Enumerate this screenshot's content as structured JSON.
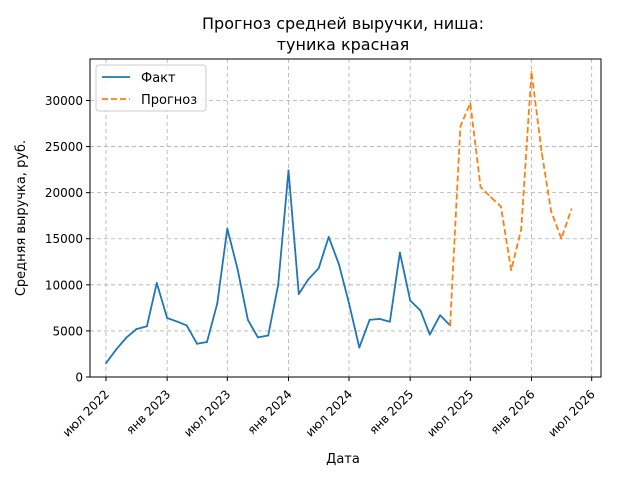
{
  "chart_data": {
    "type": "line",
    "title_lines": [
      "Прогноз средней выручки, ниша:",
      "туника красная"
    ],
    "xlabel": "Дата",
    "ylabel": "Средняя выручка, руб.",
    "grid": true,
    "legend_position": "top-left",
    "ylim": [
      0,
      34500
    ],
    "xlim": [
      "2022-05-14",
      "2026-07-29"
    ],
    "yticks": [
      0,
      5000,
      10000,
      15000,
      20000,
      25000,
      30000
    ],
    "xticks": [
      {
        "date": "2022-07-01",
        "label": "июл 2022"
      },
      {
        "date": "2023-01-01",
        "label": "янв 2023"
      },
      {
        "date": "2023-07-01",
        "label": "июл 2023"
      },
      {
        "date": "2024-01-01",
        "label": "янв 2024"
      },
      {
        "date": "2024-07-01",
        "label": "июл 2024"
      },
      {
        "date": "2025-01-01",
        "label": "янв 2025"
      },
      {
        "date": "2025-07-01",
        "label": "июл 2025"
      },
      {
        "date": "2026-01-01",
        "label": "янв 2026"
      },
      {
        "date": "2026-07-01",
        "label": "июл 2026"
      }
    ],
    "series": [
      {
        "name": "Факт",
        "color": "#1f77b4",
        "dash": "solid",
        "points": [
          {
            "x": "2022-07-01",
            "y": 1500
          },
          {
            "x": "2022-08-01",
            "y": 3000
          },
          {
            "x": "2022-09-01",
            "y": 4300
          },
          {
            "x": "2022-10-01",
            "y": 5200
          },
          {
            "x": "2022-11-01",
            "y": 5500
          },
          {
            "x": "2022-12-01",
            "y": 10200
          },
          {
            "x": "2023-01-01",
            "y": 6400
          },
          {
            "x": "2023-02-01",
            "y": 6000
          },
          {
            "x": "2023-03-01",
            "y": 5600
          },
          {
            "x": "2023-04-01",
            "y": 3600
          },
          {
            "x": "2023-05-01",
            "y": 3800
          },
          {
            "x": "2023-06-01",
            "y": 8000
          },
          {
            "x": "2023-07-01",
            "y": 16100
          },
          {
            "x": "2023-08-01",
            "y": 11700
          },
          {
            "x": "2023-09-01",
            "y": 6200
          },
          {
            "x": "2023-10-01",
            "y": 4300
          },
          {
            "x": "2023-11-01",
            "y": 4500
          },
          {
            "x": "2023-12-01",
            "y": 10000
          },
          {
            "x": "2024-01-01",
            "y": 22400
          },
          {
            "x": "2024-02-01",
            "y": 9000
          },
          {
            "x": "2024-03-01",
            "y": 10600
          },
          {
            "x": "2024-04-01",
            "y": 11800
          },
          {
            "x": "2024-05-01",
            "y": 15200
          },
          {
            "x": "2024-06-01",
            "y": 12200
          },
          {
            "x": "2024-07-01",
            "y": 8000
          },
          {
            "x": "2024-08-01",
            "y": 3200
          },
          {
            "x": "2024-09-01",
            "y": 6200
          },
          {
            "x": "2024-10-01",
            "y": 6300
          },
          {
            "x": "2024-11-01",
            "y": 6000
          },
          {
            "x": "2024-12-01",
            "y": 13500
          },
          {
            "x": "2025-01-01",
            "y": 8300
          },
          {
            "x": "2025-02-01",
            "y": 7200
          },
          {
            "x": "2025-03-01",
            "y": 4600
          },
          {
            "x": "2025-04-01",
            "y": 6700
          },
          {
            "x": "2025-05-01",
            "y": 5600
          }
        ]
      },
      {
        "name": "Прогноз",
        "color": "#ff7f0e",
        "dash": "dashed",
        "points": [
          {
            "x": "2025-05-01",
            "y": 5600
          },
          {
            "x": "2025-06-01",
            "y": 27200
          },
          {
            "x": "2025-07-01",
            "y": 29700
          },
          {
            "x": "2025-08-01",
            "y": 20600
          },
          {
            "x": "2025-09-01",
            "y": 19500
          },
          {
            "x": "2025-10-01",
            "y": 18500
          },
          {
            "x": "2025-11-01",
            "y": 11600
          },
          {
            "x": "2025-12-01",
            "y": 16000
          },
          {
            "x": "2026-01-01",
            "y": 33100
          },
          {
            "x": "2026-02-01",
            "y": 24300
          },
          {
            "x": "2026-03-01",
            "y": 18000
          },
          {
            "x": "2026-04-01",
            "y": 15000
          },
          {
            "x": "2026-05-01",
            "y": 18200
          }
        ]
      }
    ]
  }
}
